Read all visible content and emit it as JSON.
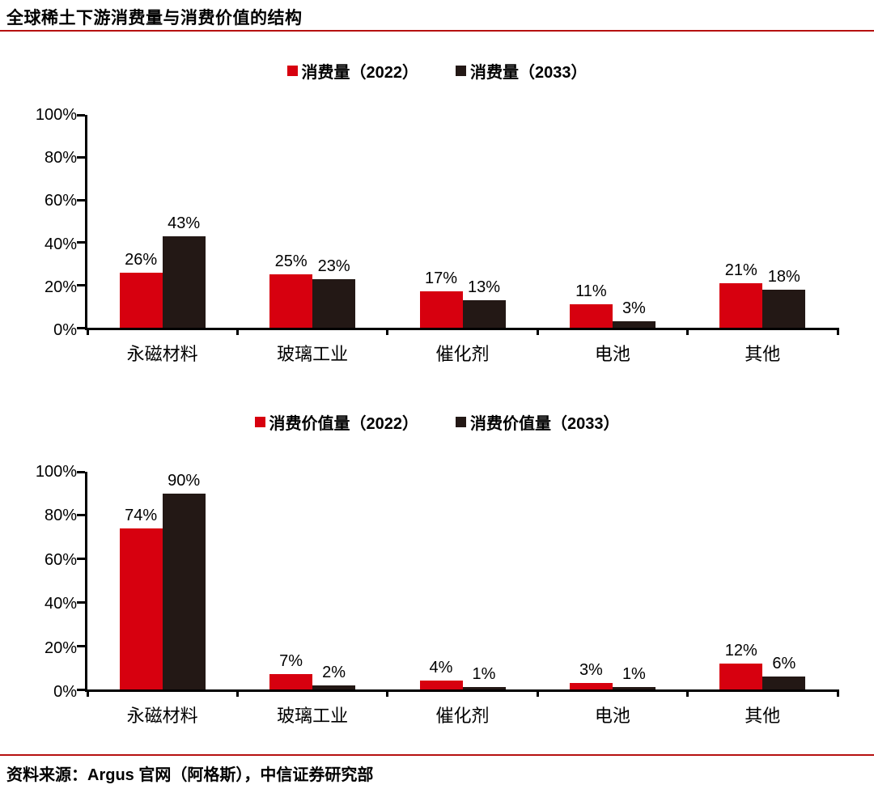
{
  "header": {
    "title": "全球稀土下游消费量与消费价值的结构"
  },
  "footer": {
    "source": "资料来源：Argus 官网（阿格斯），中信证券研究部"
  },
  "colors": {
    "series_2022_red": "#d7000f",
    "series_2033_dark": "#231815",
    "rule_red": "#b61110",
    "axis_black": "#000000"
  },
  "chart_data": [
    {
      "type": "bar",
      "categories": [
        "永磁材料",
        "玻璃工业",
        "催化剂",
        "电池",
        "其他"
      ],
      "series": [
        {
          "name": "消费量（2022）",
          "color": "#d7000f",
          "values": [
            26,
            25,
            17,
            11,
            21
          ]
        },
        {
          "name": "消费量（2033）",
          "color": "#231815",
          "values": [
            43,
            23,
            13,
            3,
            18
          ]
        }
      ],
      "ylim": [
        0,
        100
      ],
      "ytick_labels": [
        "0%",
        "20%",
        "40%",
        "60%",
        "80%",
        "100%"
      ],
      "value_suffix": "%",
      "legend_position": "top",
      "grid": false
    },
    {
      "type": "bar",
      "categories": [
        "永磁材料",
        "玻璃工业",
        "催化剂",
        "电池",
        "其他"
      ],
      "series": [
        {
          "name": "消费价值量（2022）",
          "color": "#d7000f",
          "values": [
            74,
            7,
            4,
            3,
            12
          ]
        },
        {
          "name": "消费价值量（2033）",
          "color": "#231815",
          "values": [
            90,
            2,
            1,
            1,
            6
          ]
        }
      ],
      "ylim": [
        0,
        100
      ],
      "ytick_labels": [
        "0%",
        "20%",
        "40%",
        "60%",
        "80%",
        "100%"
      ],
      "value_suffix": "%",
      "legend_position": "top",
      "grid": false
    }
  ]
}
